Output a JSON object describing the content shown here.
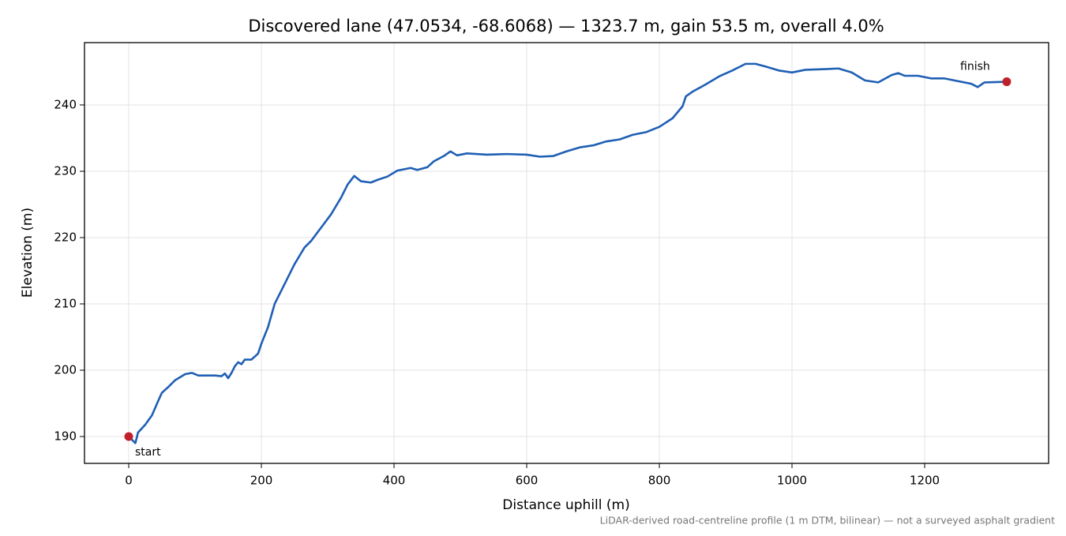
{
  "chart_data": {
    "type": "line",
    "title": "Discovered lane (47.0534, -68.6068) — 1323.7 m, gain 53.5 m, overall 4.0%",
    "x_label": "Distance uphill (m)",
    "y_label": "Elevation (m)",
    "note": "LiDAR-derived road-centreline profile (1 m DTM, bilinear) — not a surveyed asphalt gradient",
    "color": "#1f5fb4",
    "x": [
      0,
      8,
      10,
      14,
      25,
      35,
      45,
      50,
      60,
      70,
      85,
      95,
      105,
      130,
      140,
      145,
      150,
      155,
      160,
      165,
      170,
      175,
      185,
      195,
      200,
      210,
      220,
      235,
      250,
      265,
      275,
      290,
      305,
      320,
      330,
      340,
      350,
      365,
      375,
      390,
      405,
      425,
      435,
      450,
      460,
      475,
      485,
      495,
      510,
      540,
      570,
      600,
      620,
      640,
      660,
      680,
      700,
      720,
      740,
      760,
      780,
      800,
      820,
      835,
      840,
      850,
      870,
      890,
      910,
      930,
      945,
      960,
      980,
      1000,
      1020,
      1050,
      1070,
      1090,
      1110,
      1130,
      1150,
      1160,
      1170,
      1190,
      1210,
      1230,
      1250,
      1270,
      1280,
      1290,
      1323.7
    ],
    "values": [
      190.0,
      189.2,
      189.0,
      190.6,
      191.8,
      193.2,
      195.5,
      196.6,
      197.5,
      198.5,
      199.4,
      199.6,
      199.2,
      199.2,
      199.1,
      199.5,
      198.8,
      199.6,
      200.6,
      201.2,
      200.9,
      201.6,
      201.6,
      202.5,
      204.0,
      206.5,
      210.0,
      213.0,
      216.0,
      218.5,
      219.5,
      221.5,
      223.5,
      226.0,
      228.0,
      229.3,
      228.5,
      228.3,
      228.7,
      229.2,
      230.1,
      230.5,
      230.2,
      230.6,
      231.5,
      232.3,
      233.0,
      232.4,
      232.7,
      232.5,
      232.6,
      232.5,
      232.2,
      232.3,
      233.0,
      233.6,
      233.9,
      234.5,
      234.8,
      235.5,
      235.9,
      236.7,
      238.0,
      239.8,
      241.3,
      242.0,
      243.1,
      244.3,
      245.2,
      246.2,
      246.2,
      245.8,
      245.2,
      244.9,
      245.3,
      245.4,
      245.5,
      244.9,
      243.7,
      243.4,
      244.5,
      244.8,
      244.4,
      244.4,
      244.0,
      244.0,
      243.6,
      243.2,
      242.7,
      243.4,
      243.5
    ],
    "markers": [
      {
        "label": "start",
        "x": 0,
        "y": 190.0,
        "color": "#c0202a"
      },
      {
        "label": "finish",
        "x": 1323.7,
        "y": 243.5,
        "color": "#c0202a"
      }
    ],
    "xlim": [
      -66.7,
      1386.9
    ],
    "ylim": [
      185.95,
      249.4
    ],
    "xticks": [
      0,
      200,
      400,
      600,
      800,
      1000,
      1200
    ],
    "yticks": [
      190,
      200,
      210,
      220,
      230,
      240
    ],
    "grid": true
  }
}
